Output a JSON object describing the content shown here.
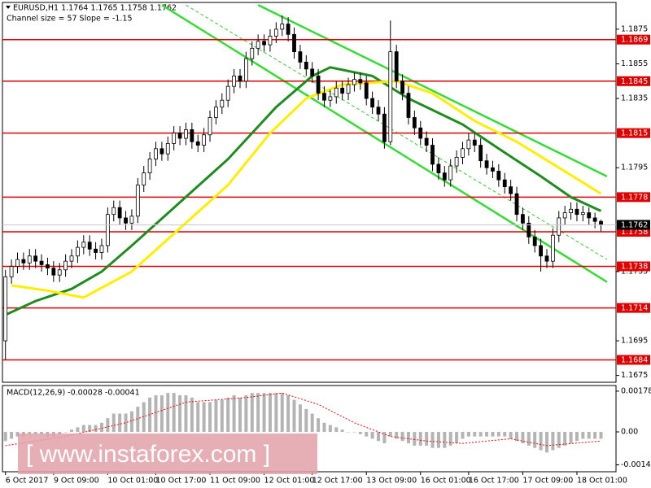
{
  "chart_data": {
    "type": "candlestick",
    "title": "EURUSD,H1  1.1764 1.1765 1.1758 1.1762",
    "subtitle": "Channel size = 57 Slope = -1.15",
    "watermark": "[ www.instaforex.com ]",
    "ylim": [
      1.1672,
      1.189
    ],
    "yticks": [
      1.1875,
      1.1855,
      1.1835,
      1.1795,
      1.1735,
      1.1695,
      1.1675
    ],
    "xlim": [
      -0.5,
      101.5
    ],
    "xticks": [
      {
        "value": 0,
        "label": "6 Oct 2017"
      },
      {
        "value": 8,
        "label": "9 Oct 09:00"
      },
      {
        "value": 17,
        "label": "10 Oct 01:00"
      },
      {
        "value": 25,
        "label": "10 Oct 17:00"
      },
      {
        "value": 34,
        "label": "11 Oct 09:00"
      },
      {
        "value": 43,
        "label": "12 Oct 01:00"
      },
      {
        "value": 51,
        "label": "12 Oct 17:00"
      },
      {
        "value": 60,
        "label": "13 Oct 09:00"
      },
      {
        "value": 69,
        "label": "16 Oct 01:00"
      },
      {
        "value": 77,
        "label": "16 Oct 17:00"
      },
      {
        "value": 86,
        "label": "17 Oct 09:00"
      },
      {
        "value": 95,
        "label": "18 Oct 01:00"
      }
    ],
    "up_color": "#ffffff",
    "down_color": "#000000",
    "open": [
      1.1695,
      1.1732,
      1.1738,
      1.1742,
      1.174,
      1.1744,
      1.1741,
      1.1739,
      1.1737,
      1.1733,
      1.1736,
      1.1741,
      1.1744,
      1.1749,
      1.1752,
      1.1748,
      1.1746,
      1.175,
      1.1768,
      1.1772,
      1.1766,
      1.1763,
      1.1767,
      1.1785,
      1.1792,
      1.18,
      1.1806,
      1.1803,
      1.1809,
      1.1815,
      1.1812,
      1.1817,
      1.181,
      1.1808,
      1.1814,
      1.1824,
      1.183,
      1.1834,
      1.1842,
      1.1848,
      1.1845,
      1.1858,
      1.1864,
      1.1868,
      1.1866,
      1.1871,
      1.1875,
      1.1878,
      1.1872,
      1.1862,
      1.1856,
      1.1852,
      1.1848,
      1.1838,
      1.1834,
      1.1836,
      1.1841,
      1.1838,
      1.1843,
      1.1846,
      1.1844,
      1.1835,
      1.183,
      1.1826,
      1.181,
      1.1862,
      1.1845,
      1.1838,
      1.1824,
      1.1818,
      1.1812,
      1.1808,
      1.1797,
      1.1792,
      1.1788,
      1.1796,
      1.1801,
      1.1806,
      1.1811,
      1.1808,
      1.1799,
      1.1795,
      1.1793,
      1.1788,
      1.1784,
      1.178,
      1.1768,
      1.1763,
      1.1755,
      1.175,
      1.1744,
      1.1741,
      1.1756,
      1.1766,
      1.1769,
      1.1771,
      1.1768,
      1.1769,
      1.1766,
      1.1764
    ],
    "high": [
      1.1736,
      1.1742,
      1.1746,
      1.1746,
      1.1748,
      1.1748,
      1.1745,
      1.1743,
      1.1741,
      1.174,
      1.1745,
      1.1748,
      1.1753,
      1.1756,
      1.1756,
      1.1752,
      1.1754,
      1.1772,
      1.1776,
      1.1776,
      1.177,
      1.1771,
      1.1789,
      1.1796,
      1.1804,
      1.181,
      1.181,
      1.1813,
      1.1819,
      1.1819,
      1.1821,
      1.1821,
      1.1814,
      1.1818,
      1.1828,
      1.1834,
      1.1838,
      1.1846,
      1.1852,
      1.1852,
      1.1862,
      1.1868,
      1.1872,
      1.1872,
      1.1875,
      1.1879,
      1.1883,
      1.1882,
      1.1876,
      1.1866,
      1.186,
      1.1856,
      1.1852,
      1.1842,
      1.184,
      1.1845,
      1.1845,
      1.1847,
      1.185,
      1.185,
      1.1848,
      1.1839,
      1.1834,
      1.183,
      1.188,
      1.1866,
      1.1849,
      1.1842,
      1.1828,
      1.1822,
      1.1816,
      1.1812,
      1.1801,
      1.1796,
      1.18,
      1.1805,
      1.181,
      1.1815,
      1.1815,
      1.1812,
      1.1803,
      1.1799,
      1.1797,
      1.1792,
      1.1788,
      1.1784,
      1.1772,
      1.1767,
      1.1759,
      1.1754,
      1.1748,
      1.176,
      1.177,
      1.1773,
      1.1775,
      1.1775,
      1.1773,
      1.1772,
      1.1769,
      1.1765
    ],
    "low": [
      1.1684,
      1.1728,
      1.1734,
      1.1736,
      1.1736,
      1.1737,
      1.1735,
      1.1733,
      1.1729,
      1.1729,
      1.1732,
      1.1737,
      1.174,
      1.1745,
      1.1744,
      1.1742,
      1.1742,
      1.1746,
      1.1764,
      1.1762,
      1.1759,
      1.1759,
      1.1763,
      1.1781,
      1.1788,
      1.1796,
      1.1799,
      1.1799,
      1.1805,
      1.1808,
      1.1808,
      1.1806,
      1.1804,
      1.1804,
      1.181,
      1.182,
      1.1826,
      1.183,
      1.1838,
      1.1841,
      1.1841,
      1.1854,
      1.186,
      1.1862,
      1.1862,
      1.1867,
      1.1871,
      1.1868,
      1.1858,
      1.1852,
      1.1848,
      1.1844,
      1.1834,
      1.183,
      1.183,
      1.1832,
      1.1834,
      1.1834,
      1.1839,
      1.184,
      1.1831,
      1.1826,
      1.1822,
      1.1806,
      1.1808,
      1.1841,
      1.1834,
      1.182,
      1.1814,
      1.1808,
      1.1804,
      1.1793,
      1.1788,
      1.1784,
      1.1784,
      1.1792,
      1.1797,
      1.1802,
      1.1804,
      1.1795,
      1.1791,
      1.1789,
      1.1784,
      1.178,
      1.1776,
      1.1764,
      1.1759,
      1.1751,
      1.1746,
      1.1735,
      1.1737,
      1.1737,
      1.1752,
      1.1762,
      1.1765,
      1.1764,
      1.1764,
      1.1762,
      1.176,
      1.1758
    ],
    "close": [
      1.1732,
      1.1738,
      1.1742,
      1.174,
      1.1744,
      1.1741,
      1.1739,
      1.1737,
      1.1733,
      1.1736,
      1.1741,
      1.1744,
      1.1749,
      1.1752,
      1.1748,
      1.1746,
      1.175,
      1.1768,
      1.1772,
      1.1766,
      1.1763,
      1.1767,
      1.1785,
      1.1792,
      1.18,
      1.1806,
      1.1803,
      1.1809,
      1.1815,
      1.1812,
      1.1817,
      1.181,
      1.1808,
      1.1814,
      1.1824,
      1.183,
      1.1834,
      1.1842,
      1.1848,
      1.1845,
      1.1858,
      1.1864,
      1.1868,
      1.1866,
      1.1871,
      1.1875,
      1.1878,
      1.1872,
      1.1862,
      1.1856,
      1.1852,
      1.1848,
      1.1838,
      1.1834,
      1.1836,
      1.1841,
      1.1838,
      1.1843,
      1.1846,
      1.1844,
      1.1835,
      1.183,
      1.1826,
      1.181,
      1.1862,
      1.1845,
      1.1838,
      1.1824,
      1.1818,
      1.1812,
      1.1808,
      1.1797,
      1.1792,
      1.1788,
      1.1796,
      1.1801,
      1.1806,
      1.1811,
      1.1808,
      1.1799,
      1.1795,
      1.1793,
      1.1788,
      1.1784,
      1.178,
      1.1768,
      1.1763,
      1.1755,
      1.175,
      1.1744,
      1.1741,
      1.1756,
      1.1766,
      1.1769,
      1.1771,
      1.1768,
      1.1769,
      1.1766,
      1.1764,
      1.1762
    ],
    "overlays": [
      {
        "color": "#1e8c1e",
        "width": 3,
        "x": [
          0,
          5,
          11,
          16,
          21,
          29,
          37,
          45,
          51,
          54,
          61,
          67,
          76,
          82,
          89,
          94,
          99
        ],
        "values": [
          1.171,
          1.1718,
          1.1725,
          1.1735,
          1.175,
          1.1775,
          1.18,
          1.183,
          1.1848,
          1.1853,
          1.1848,
          1.1835,
          1.182,
          1.1806,
          1.179,
          1.1778,
          1.177
        ]
      },
      {
        "color": "#ffee00",
        "width": 3,
        "x": [
          1,
          7,
          13,
          21,
          29,
          37,
          44,
          50,
          56,
          65,
          71,
          78,
          85,
          92,
          99
        ],
        "values": [
          1.1727,
          1.1724,
          1.172,
          1.1735,
          1.176,
          1.1785,
          1.1815,
          1.1835,
          1.1843,
          1.1845,
          1.1838,
          1.1822,
          1.181,
          1.1795,
          1.178
        ]
      }
    ],
    "trendlines": [
      {
        "color": "#33dd33",
        "x": [
          26,
          100
        ],
        "values": [
          1.1889,
          1.1729
        ]
      },
      {
        "color": "#33dd33",
        "x": [
          42,
          100
        ],
        "values": [
          1.1889,
          1.179
        ]
      },
      {
        "color": "#33cc33",
        "dashed": true,
        "x": [
          30,
          100
        ],
        "values": [
          1.1889,
          1.1742
        ]
      }
    ],
    "levels": [
      1.1869,
      1.1845,
      1.1815,
      1.1778,
      1.1758,
      1.1738,
      1.1714,
      1.1684
    ],
    "level_color": "#e00000",
    "last_price": 1.1762,
    "macd": {
      "label": "MACD(12,26,9) -0.00028 -0.00041",
      "ylim": [
        -0.00174,
        0.00199
      ],
      "yticks": [
        0.00178,
        {
          "value": 0,
          "label": "0.00"
        },
        -0.00144
      ],
      "color": "#b4b4b4",
      "signal_color": "#ff0000",
      "values": [
        -0.0004,
        -0.0003,
        -0.0002,
        -0.0002,
        -0.0001,
        -0.0001,
        -0.0001,
        -0.0002,
        -0.0002,
        -0.0001,
        0.0,
        0.0001,
        0.0002,
        0.0003,
        0.0003,
        0.0003,
        0.0004,
        0.0006,
        0.0008,
        0.0008,
        0.0008,
        0.0009,
        0.0011,
        0.0013,
        0.0015,
        0.0016,
        0.0016,
        0.0017,
        0.0017,
        0.0016,
        0.0016,
        0.0015,
        0.0013,
        0.0013,
        0.0013,
        0.0014,
        0.0014,
        0.0015,
        0.0016,
        0.0015,
        0.0016,
        0.0017,
        0.0017,
        0.0017,
        0.0017,
        0.0017,
        0.0017,
        0.0016,
        0.0014,
        0.0012,
        0.001,
        0.0008,
        0.0006,
        0.0004,
        0.0003,
        0.0002,
        0.0001,
        0.0,
        0.0,
        -0.0001,
        -0.0002,
        -0.0003,
        -0.0004,
        -0.0005,
        -0.0002,
        -0.0003,
        -0.0004,
        -0.0005,
        -0.0006,
        -0.0006,
        -0.0006,
        -0.0007,
        -0.0007,
        -0.0007,
        -0.0006,
        -0.0005,
        -0.0003,
        -0.0002,
        -0.0002,
        -0.0002,
        -0.0002,
        -0.0002,
        -0.0002,
        -0.0002,
        -0.0003,
        -0.0004,
        -0.0005,
        -0.0006,
        -0.0007,
        -0.0008,
        -0.0009,
        -0.0008,
        -0.0007,
        -0.0006,
        -0.0005,
        -0.0004,
        -0.0003,
        -0.0003,
        -0.0003,
        -0.0003
      ],
      "signal": {
        "x": [
          0,
          10,
          20,
          30,
          40,
          46,
          52,
          58,
          64,
          70,
          76,
          84,
          90,
          99
        ],
        "values": [
          -0.0006,
          -0.0002,
          0.0004,
          0.0013,
          0.0015,
          0.0017,
          0.0012,
          0.0004,
          -0.0002,
          -0.0004,
          -0.0005,
          -0.0003,
          -0.0006,
          -0.0004
        ]
      }
    }
  }
}
